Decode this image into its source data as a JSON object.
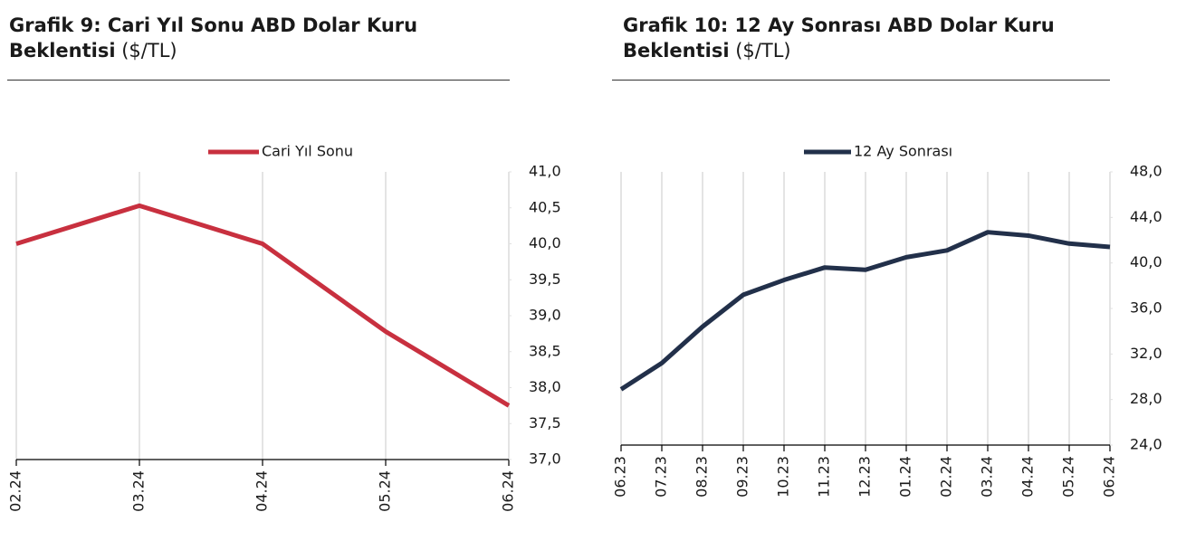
{
  "chart_data": [
    {
      "type": "line",
      "title": "Grafik 9: Cari Yıl Sonu ABD Dolar Kuru Beklentisi",
      "unit": "($/TL)",
      "categories": [
        "02.24",
        "03.24",
        "04.24",
        "05.24",
        "06.24"
      ],
      "series": [
        {
          "name": "Cari Yıl Sonu",
          "color": "#c8303f",
          "values": [
            40.0,
            40.53,
            40.0,
            38.78,
            37.75
          ]
        }
      ],
      "ylim": [
        37,
        41
      ],
      "yticks": [
        {
          "value": 37,
          "label": "37,0"
        },
        {
          "value": 37.5,
          "label": "37,5"
        },
        {
          "value": 38,
          "label": "38,0"
        },
        {
          "value": 38.5,
          "label": "38,5"
        },
        {
          "value": 39,
          "label": "39,0"
        },
        {
          "value": 39.5,
          "label": "39,5"
        },
        {
          "value": 40,
          "label": "40,0"
        },
        {
          "value": 40.5,
          "label": "40,5"
        },
        {
          "value": 41,
          "label": "41,0"
        }
      ],
      "grid": true
    },
    {
      "type": "line",
      "title": "Grafik 10: 12 Ay Sonrası ABD Dolar Kuru Beklentisi",
      "unit": "($/TL)",
      "categories": [
        "06.23",
        "07.23",
        "08.23",
        "09.23",
        "10.23",
        "11.23",
        "12.23",
        "01.24",
        "02.24",
        "03.24",
        "04.24",
        "05.24",
        "06.24"
      ],
      "series": [
        {
          "name": "12 Ay Sonrası",
          "color": "#22304a",
          "values": [
            28.9,
            31.2,
            34.4,
            37.2,
            38.5,
            39.6,
            39.4,
            40.5,
            41.1,
            42.7,
            42.4,
            41.7,
            41.4
          ]
        }
      ],
      "ylim": [
        24,
        48
      ],
      "yticks": [
        {
          "value": 24,
          "label": "24,0"
        },
        {
          "value": 28,
          "label": "28,0"
        },
        {
          "value": 32,
          "label": "32,0"
        },
        {
          "value": 36,
          "label": "36,0"
        },
        {
          "value": 40,
          "label": "40,0"
        },
        {
          "value": 44,
          "label": "44,0"
        },
        {
          "value": 48,
          "label": "48,0"
        }
      ],
      "grid": true
    }
  ]
}
